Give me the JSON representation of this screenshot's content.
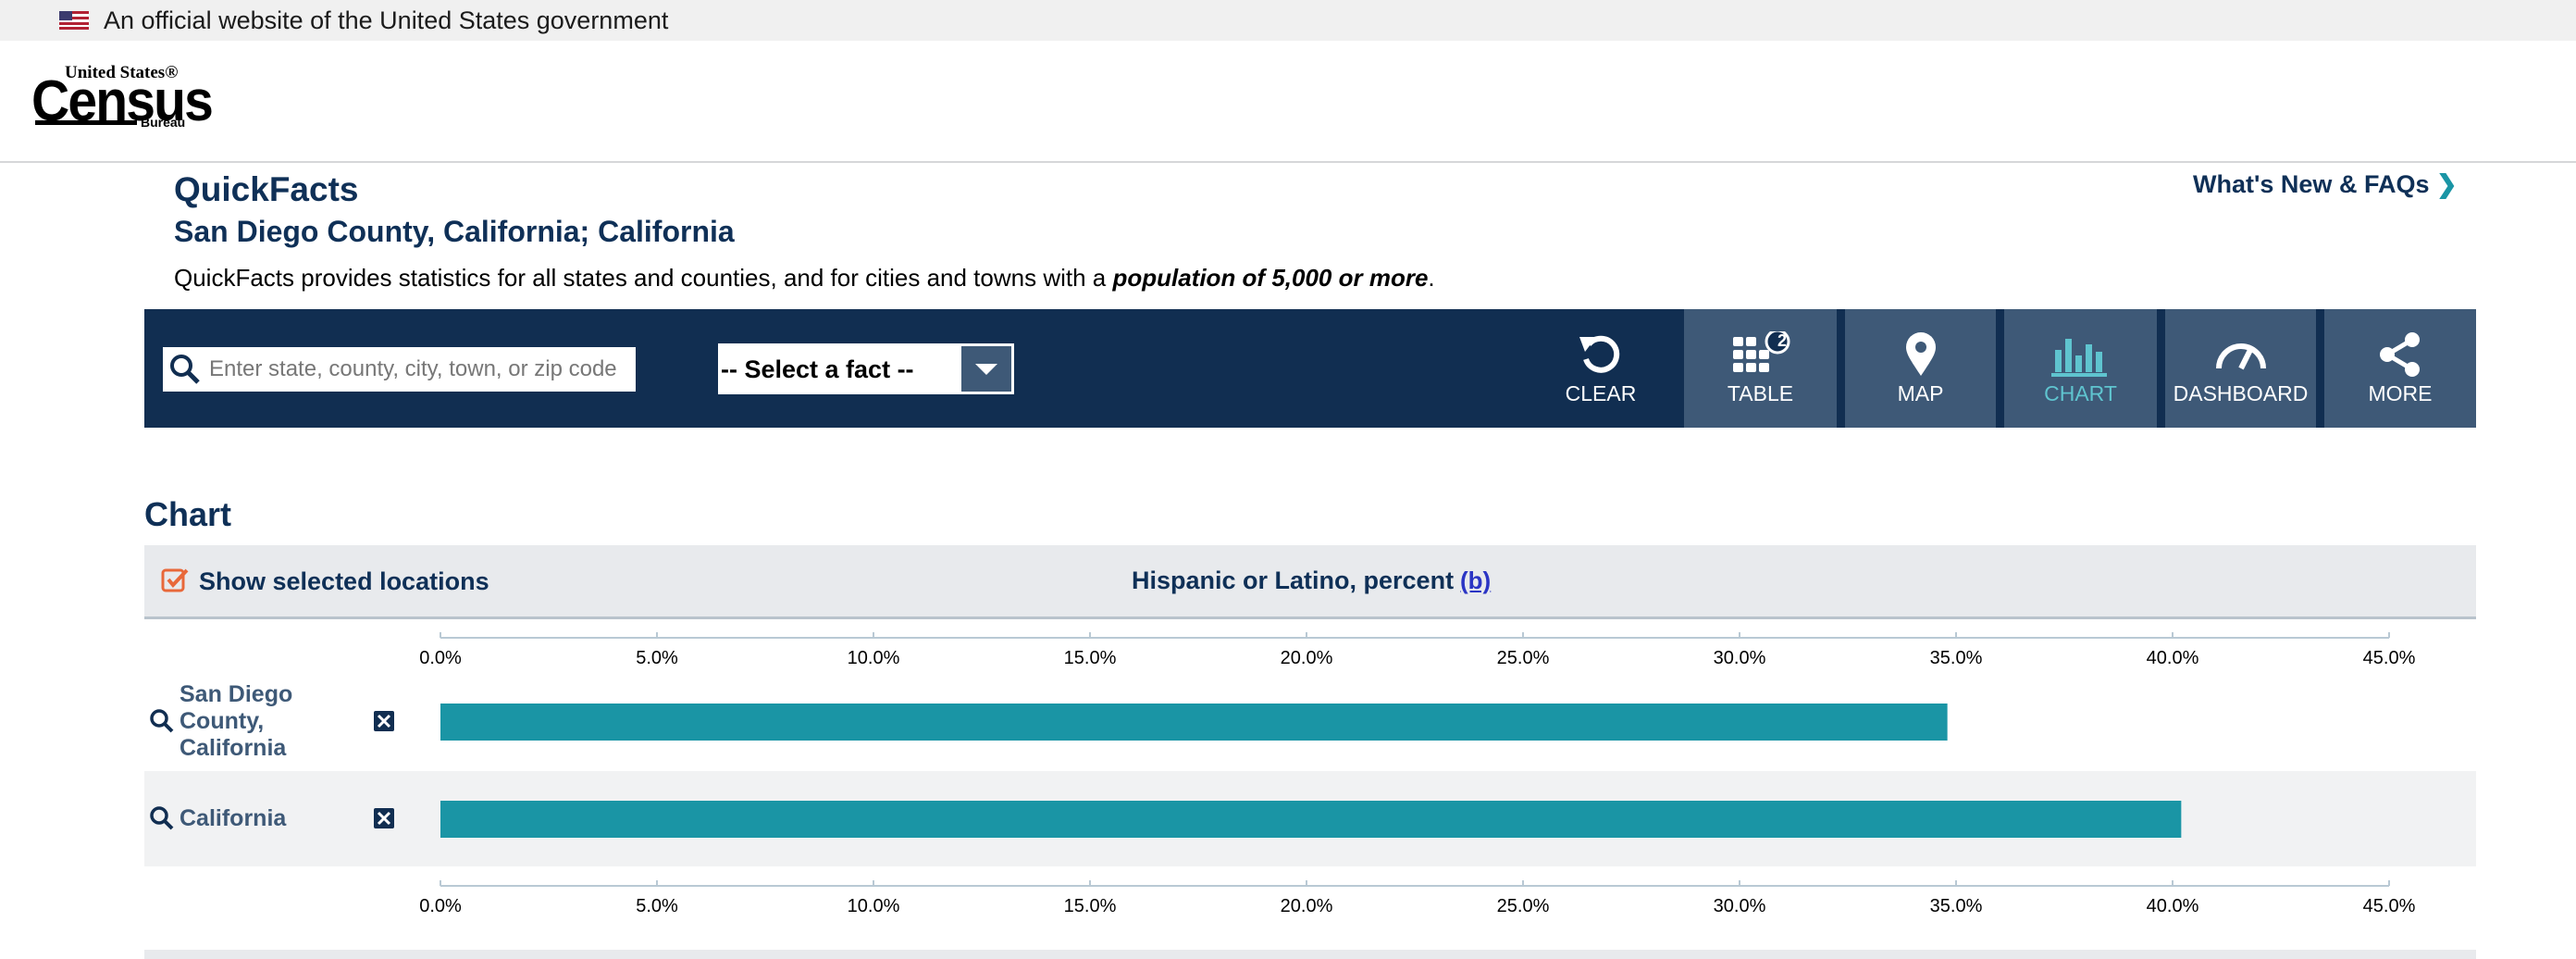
{
  "banner": {
    "text": "An official website of the United States government"
  },
  "logo": {
    "top": "United States®",
    "main": "Census",
    "bottom": "Bureau"
  },
  "header": {
    "title": "QuickFacts",
    "subtitle": "San Diego County, California; California",
    "description_start": "QuickFacts provides statistics for all states and counties, and for cities and towns with a ",
    "description_bold": "population of 5,000 or more",
    "description_end": ".",
    "link": "What's New & FAQs"
  },
  "toolbar": {
    "search_placeholder": "Enter state, county, city, town, or zip code",
    "select": "-- Select a fact --",
    "buttons": [
      "CLEAR",
      "TABLE",
      "MAP",
      "CHART",
      "DASHBOARD",
      "MORE"
    ],
    "table_badge": "2"
  },
  "section": {
    "heading": "Chart",
    "toggle": "Show selected locations",
    "fact": "Hispanic or Latino, percent",
    "note": "(b)"
  },
  "chart_data": {
    "type": "bar",
    "orientation": "horizontal",
    "color": "#1a95a5",
    "categories": [
      "San Diego County, California",
      "California"
    ],
    "values": [
      34.8,
      40.2
    ],
    "xlim": [
      0,
      45
    ],
    "xticks": [
      {
        "value": 0,
        "label": "0.0%"
      },
      {
        "value": 5,
        "label": "5.0%"
      },
      {
        "value": 10,
        "label": "10.0%"
      },
      {
        "value": 15,
        "label": "15.0%"
      },
      {
        "value": 20,
        "label": "20.0%"
      },
      {
        "value": 25,
        "label": "25.0%"
      },
      {
        "value": 30,
        "label": "30.0%"
      },
      {
        "value": 35,
        "label": "35.0%"
      },
      {
        "value": 40,
        "label": "40.0%"
      },
      {
        "value": 45,
        "label": "45.0%"
      }
    ]
  }
}
